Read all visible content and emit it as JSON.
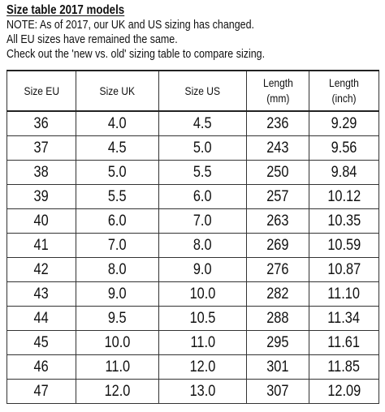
{
  "title": "Size table 2017 models",
  "notes": [
    "NOTE: As of 2017, our UK and US sizing has changed.",
    "All EU sizes have remained the same.",
    "Check out the 'new vs. old' sizing table to compare sizing."
  ],
  "table": {
    "headers": [
      {
        "line1": "Size EU",
        "line2": ""
      },
      {
        "line1": "Size UK",
        "line2": ""
      },
      {
        "line1": "Size US",
        "line2": ""
      },
      {
        "line1": "Length",
        "line2": "(mm)"
      },
      {
        "line1": "Length",
        "line2": "(inch)"
      }
    ],
    "rows": [
      [
        "36",
        "4.0",
        "4.5",
        "236",
        "9.29"
      ],
      [
        "37",
        "4.5",
        "5.0",
        "243",
        "9.56"
      ],
      [
        "38",
        "5.0",
        "5.5",
        "250",
        "9.84"
      ],
      [
        "39",
        "5.5",
        "6.0",
        "257",
        "10.12"
      ],
      [
        "40",
        "6.0",
        "7.0",
        "263",
        "10.35"
      ],
      [
        "41",
        "7.0",
        "8.0",
        "269",
        "10.59"
      ],
      [
        "42",
        "8.0",
        "9.0",
        "276",
        "10.87"
      ],
      [
        "43",
        "9.0",
        "10.0",
        "282",
        "11.10"
      ],
      [
        "44",
        "9.5",
        "10.5",
        "288",
        "11.34"
      ],
      [
        "45",
        "10.0",
        "11.0",
        "295",
        "11.61"
      ],
      [
        "46",
        "11.0",
        "12.0",
        "301",
        "11.85"
      ],
      [
        "47",
        "12.0",
        "13.0",
        "307",
        "12.09"
      ]
    ]
  }
}
